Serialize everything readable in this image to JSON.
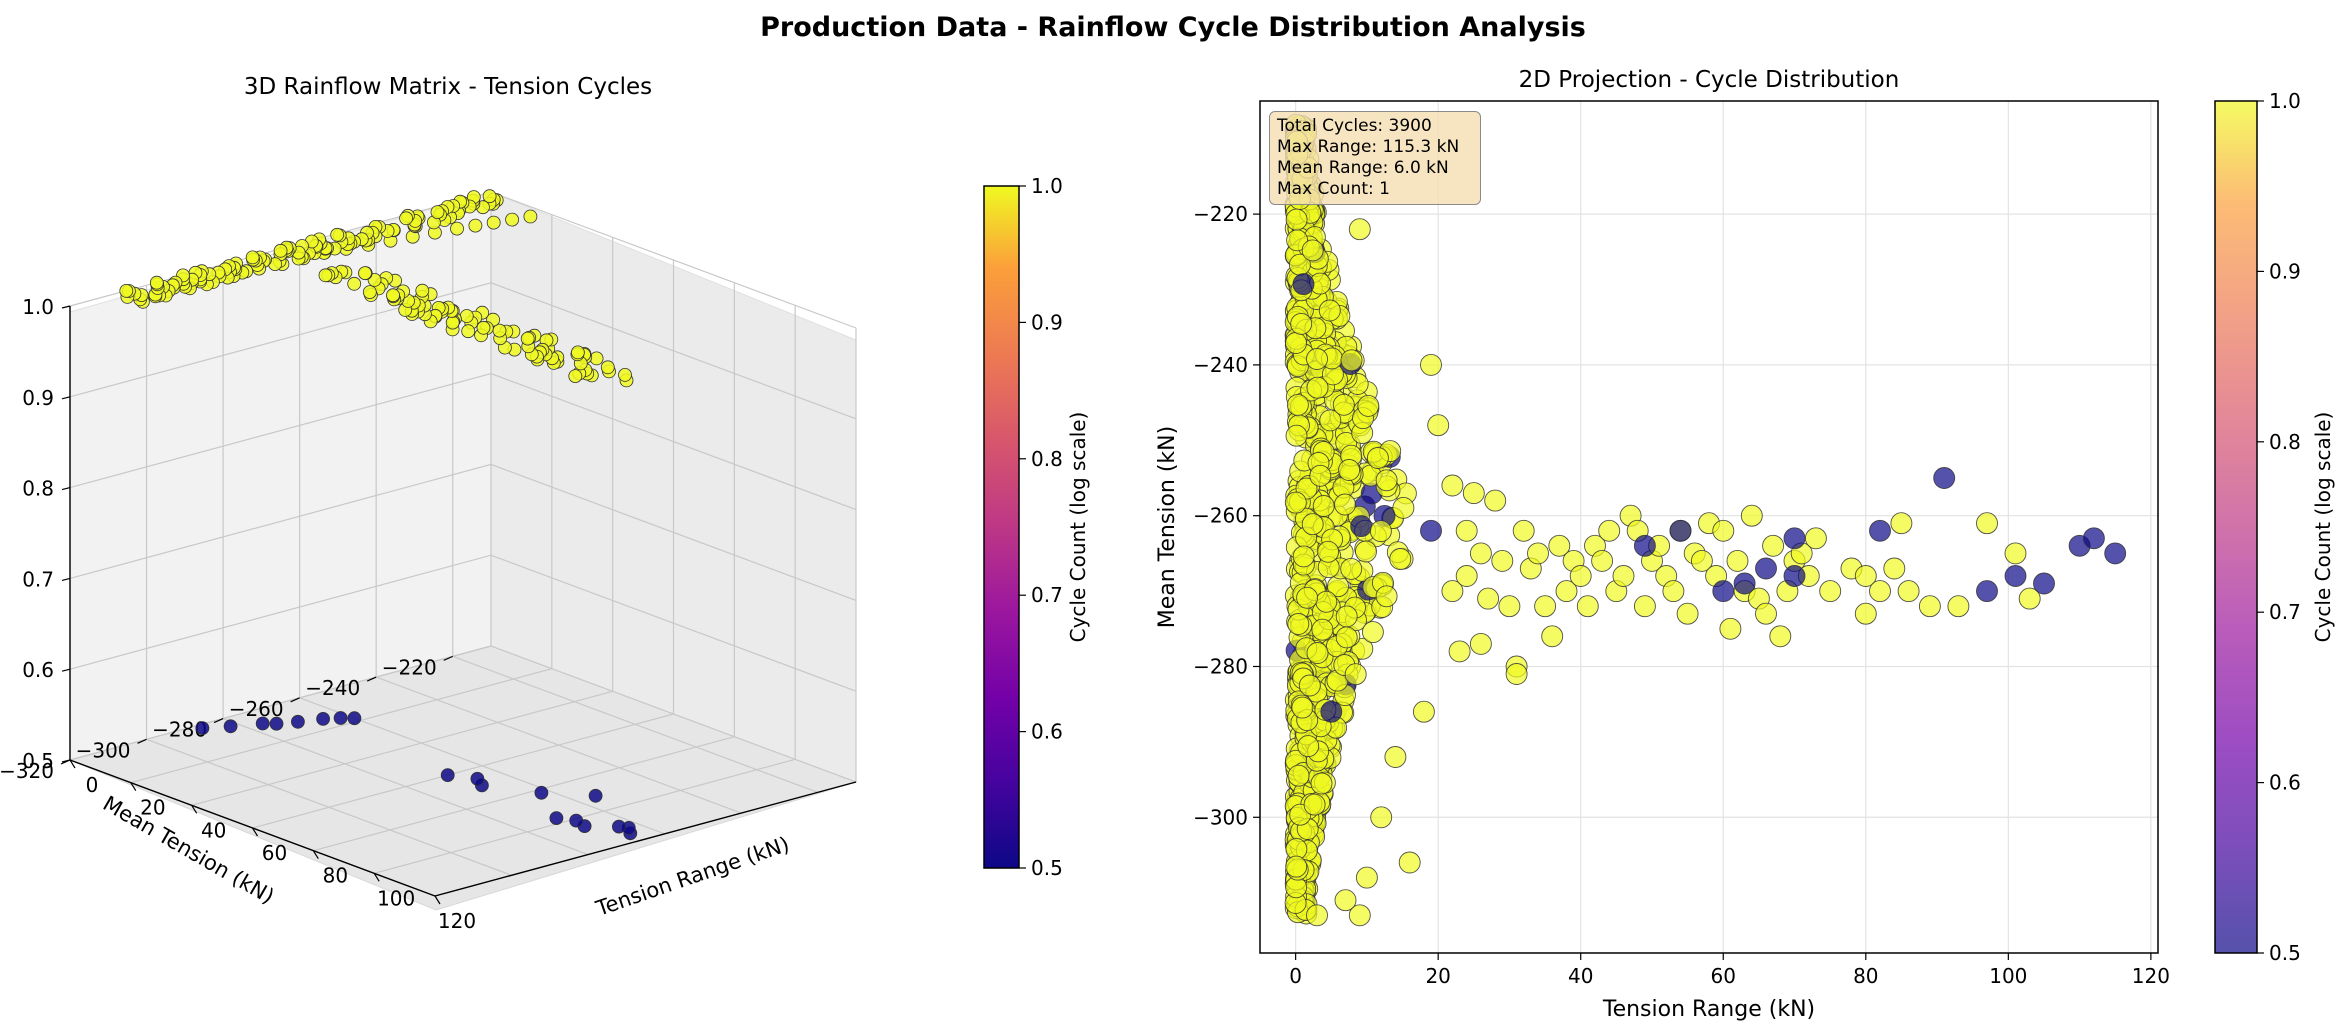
{
  "suptitle": "Production Data - Rainflow Cycle Distribution Analysis",
  "colormap": {
    "name": "plasma",
    "low": "#0d0887",
    "mid": "#cc4778",
    "high": "#f0f921"
  },
  "chart_data": [
    {
      "type": "scatter",
      "projection": "3d",
      "title": "3D Rainflow Matrix - Tension Cycles",
      "xlabel": "Tension Range (kN)",
      "ylabel": "Mean Tension (kN)",
      "zlabel": "",
      "xticks": [
        "0",
        "20",
        "40",
        "60",
        "80",
        "100",
        "120"
      ],
      "yticks": [
        "−320",
        "−300",
        "−280",
        "−260",
        "−240",
        "−220"
      ],
      "zticks": [
        "0.5",
        "0.6",
        "0.7",
        "0.8",
        "0.9",
        "1.0"
      ],
      "xlim": [
        0,
        120
      ],
      "ylim": [
        -320,
        -210
      ],
      "zlim": [
        0.5,
        1.0
      ],
      "color_by": "cycle count",
      "series": [
        {
          "label_value": 1.0,
          "color": "#f0f921",
          "points": [
            [
              0.5,
              -305,
              1
            ],
            [
              1,
              -298,
              1
            ],
            [
              2,
              -292,
              1
            ],
            [
              3,
              -286,
              1
            ],
            [
              4,
              -280,
              1
            ],
            [
              5,
              -275,
              1
            ],
            [
              6,
              -270,
              1
            ],
            [
              7,
              -265,
              1
            ],
            [
              8,
              -260,
              1
            ],
            [
              9,
              -255,
              1
            ],
            [
              10,
              -250,
              1
            ],
            [
              11,
              -245,
              1
            ],
            [
              12,
              -240,
              1
            ],
            [
              13,
              -235,
              1
            ],
            [
              14,
              -230,
              1
            ],
            [
              15,
              -226,
              1
            ],
            [
              16,
              -222,
              1
            ],
            [
              17,
              -218,
              1
            ],
            [
              18,
              -214,
              1
            ],
            [
              20,
              -265,
              1
            ],
            [
              24,
              -262,
              1
            ],
            [
              28,
              -268,
              1
            ],
            [
              32,
              -264,
              1
            ],
            [
              36,
              -270,
              1
            ],
            [
              40,
              -266,
              1
            ],
            [
              44,
              -263,
              1
            ],
            [
              48,
              -267,
              1
            ],
            [
              52,
              -265,
              1
            ],
            [
              56,
              -269,
              1
            ],
            [
              60,
              -264,
              1
            ],
            [
              64,
              -266,
              1
            ],
            [
              68,
              -270,
              1
            ],
            [
              72,
              -265,
              1
            ],
            [
              76,
              -268,
              1
            ],
            [
              80,
              -264,
              1
            ],
            [
              84,
              -267,
              1
            ],
            [
              88,
              -265,
              1
            ],
            [
              92,
              -271,
              1
            ],
            [
              96,
              -262,
              1
            ],
            [
              100,
              -266,
              1
            ],
            [
              104,
              -268,
              1
            ],
            [
              108,
              -265,
              1
            ],
            [
              112,
              -264,
              1
            ],
            [
              115,
              -266,
              1
            ]
          ]
        },
        {
          "label_value": 0.5,
          "color": "#0d0887",
          "points": [
            [
              2,
              -287,
              0.5
            ],
            [
              5,
              -282,
              0.5
            ],
            [
              8,
              -276,
              0.5
            ],
            [
              10,
              -274,
              0.5
            ],
            [
              12,
              -270,
              0.5
            ],
            [
              14,
              -265,
              0.5
            ],
            [
              16,
              -262,
              0.5
            ],
            [
              18,
              -260,
              0.5
            ],
            [
              60,
              -269,
              0.5
            ],
            [
              66,
              -266,
              0.5
            ],
            [
              70,
              -268,
              0.5
            ],
            [
              82,
              -262,
              0.5
            ],
            [
              91,
              -255,
              0.5
            ],
            [
              97,
              -270,
              0.5
            ],
            [
              101,
              -268,
              0.5
            ],
            [
              105,
              -269,
              0.5
            ],
            [
              110,
              -264,
              0.5
            ],
            [
              112,
              -263,
              0.5
            ],
            [
              115,
              -265,
              0.5
            ]
          ]
        }
      ],
      "colorbar": {
        "label": "Cycle Count (log scale)",
        "ticks": [
          "0.5",
          "0.6",
          "0.7",
          "0.8",
          "0.9",
          "1.0"
        ],
        "range": [
          0.5,
          1.0
        ]
      }
    },
    {
      "type": "scatter",
      "title": "2D Projection - Cycle Distribution",
      "xlabel": "Tension Range (kN)",
      "ylabel": "Mean Tension (kN)",
      "xticks": [
        "0",
        "20",
        "40",
        "60",
        "80",
        "100",
        "120"
      ],
      "yticks": [
        "−220",
        "−240",
        "−260",
        "−280",
        "−300"
      ],
      "xlim": [
        -5,
        121
      ],
      "ylim": [
        -318,
        -205
      ],
      "grid": true,
      "stats": {
        "total": "Total Cycles: 3900",
        "max_range": "Max Range: 115.3 kN",
        "mean_range": "Mean Range: 6.0 kN",
        "max_count": "Max Count: 1"
      },
      "dense_core": {
        "x_min": 0,
        "x_max": 20,
        "y_min": -313,
        "y_max": -208,
        "count": 3900
      },
      "series": [
        {
          "label_value": 1.0,
          "color": "#f0f921",
          "points": [
            [
              9,
              -222
            ],
            [
              19,
              -240
            ],
            [
              20,
              -248
            ],
            [
              16,
              -306
            ],
            [
              9,
              -313
            ],
            [
              10,
              -308
            ],
            [
              7,
              -311
            ],
            [
              3,
              -313
            ],
            [
              12,
              -300
            ],
            [
              14,
              -292
            ],
            [
              18,
              -286
            ],
            [
              22,
              -256
            ],
            [
              22,
              -270
            ],
            [
              23,
              -278
            ],
            [
              24,
              -262
            ],
            [
              24,
              -268
            ],
            [
              25,
              -257
            ],
            [
              26,
              -265
            ],
            [
              26,
              -277
            ],
            [
              27,
              -271
            ],
            [
              28,
              -258
            ],
            [
              29,
              -266
            ],
            [
              30,
              -272
            ],
            [
              31,
              -280
            ],
            [
              31,
              -281
            ],
            [
              32,
              -262
            ],
            [
              33,
              -267
            ],
            [
              34,
              -265
            ],
            [
              35,
              -272
            ],
            [
              36,
              -276
            ],
            [
              37,
              -264
            ],
            [
              38,
              -270
            ],
            [
              39,
              -266
            ],
            [
              40,
              -268
            ],
            [
              41,
              -272
            ],
            [
              42,
              -264
            ],
            [
              43,
              -266
            ],
            [
              44,
              -262
            ],
            [
              45,
              -270
            ],
            [
              46,
              -268
            ],
            [
              47,
              -260
            ],
            [
              48,
              -262
            ],
            [
              49,
              -272
            ],
            [
              50,
              -266
            ],
            [
              51,
              -264
            ],
            [
              52,
              -268
            ],
            [
              53,
              -270
            ],
            [
              54,
              -262
            ],
            [
              55,
              -273
            ],
            [
              56,
              -265
            ],
            [
              57,
              -266
            ],
            [
              58,
              -261
            ],
            [
              59,
              -268
            ],
            [
              60,
              -262
            ],
            [
              61,
              -275
            ],
            [
              62,
              -266
            ],
            [
              63,
              -270
            ],
            [
              64,
              -260
            ],
            [
              65,
              -271
            ],
            [
              66,
              -273
            ],
            [
              67,
              -264
            ],
            [
              68,
              -276
            ],
            [
              69,
              -270
            ],
            [
              70,
              -266
            ],
            [
              71,
              -265
            ],
            [
              72,
              -268
            ],
            [
              73,
              -263
            ],
            [
              75,
              -270
            ],
            [
              78,
              -267
            ],
            [
              80,
              -268
            ],
            [
              80,
              -273
            ],
            [
              82,
              -270
            ],
            [
              84,
              -267
            ],
            [
              85,
              -261
            ],
            [
              86,
              -270
            ],
            [
              89,
              -272
            ],
            [
              93,
              -272
            ],
            [
              97,
              -261
            ],
            [
              101,
              -265
            ],
            [
              103,
              -271
            ]
          ]
        },
        {
          "label_value": 0.5,
          "color": "#0d0887",
          "points": [
            [
              5,
              -286
            ],
            [
              19,
              -262
            ],
            [
              49,
              -264
            ],
            [
              54,
              -262
            ],
            [
              60,
              -270
            ],
            [
              63,
              -269
            ],
            [
              66,
              -267
            ],
            [
              70,
              -263
            ],
            [
              70,
              -268
            ],
            [
              82,
              -262
            ],
            [
              91,
              -255
            ],
            [
              97,
              -270
            ],
            [
              101,
              -268
            ],
            [
              105,
              -269
            ],
            [
              110,
              -264
            ],
            [
              112,
              -263
            ],
            [
              115,
              -265
            ]
          ]
        }
      ],
      "colorbar": {
        "label": "Cycle Count (log scale)",
        "ticks": [
          "0.5",
          "0.6",
          "0.7",
          "0.8",
          "0.9",
          "1.0"
        ],
        "range": [
          0.5,
          1.0
        ]
      }
    }
  ]
}
